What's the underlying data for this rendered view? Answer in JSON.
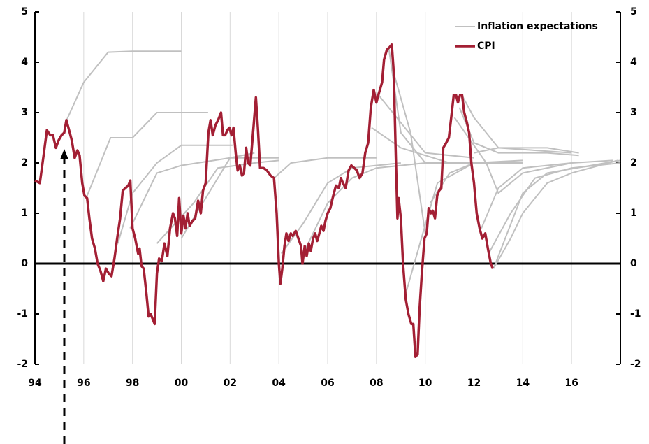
{
  "chart_data": {
    "type": "line",
    "xlim": [
      1994,
      2018
    ],
    "xticks": [
      {
        "value": 1994,
        "label": "94"
      },
      {
        "value": 1996,
        "label": "96"
      },
      {
        "value": 1998,
        "label": "98"
      },
      {
        "value": 2000,
        "label": "00"
      },
      {
        "value": 2002,
        "label": "02"
      },
      {
        "value": 2004,
        "label": "04"
      },
      {
        "value": 2006,
        "label": "06"
      },
      {
        "value": 2008,
        "label": "08"
      },
      {
        "value": 2010,
        "label": "10"
      },
      {
        "value": 2012,
        "label": "12"
      },
      {
        "value": 2014,
        "label": "14"
      },
      {
        "value": 2016,
        "label": "16"
      }
    ],
    "ylim": [
      -2,
      5
    ],
    "yticks": [
      -2,
      -1,
      0,
      1,
      2,
      3,
      4,
      5
    ],
    "y2lim": [
      -2,
      5
    ],
    "y2ticks": [
      -2,
      -1,
      0,
      1,
      2,
      3,
      4,
      5
    ],
    "grid": true,
    "legend": "top-right",
    "series": [
      {
        "name": "Inflation expectations",
        "color": "#c0c0c0",
        "lines": [
          {
            "x": [
              1995.3,
              1996,
              1997,
              1998,
              2000
            ],
            "values": [
              2.85,
              3.6,
              4.2,
              4.22,
              4.22
            ]
          },
          {
            "x": [
              1996.1,
              1997.1,
              1998,
              1999,
              2001.1
            ],
            "values": [
              1.3,
              2.5,
              2.5,
              3.0,
              3.0
            ]
          },
          {
            "x": [
              1997.4,
              1998,
              1999,
              2000,
              2002.1
            ],
            "values": [
              0.4,
              1.4,
              2.0,
              2.35,
              2.35
            ]
          },
          {
            "x": [
              1997.9,
              1999,
              2000,
              2002,
              2004
            ],
            "values": [
              0.7,
              1.8,
              1.95,
              2.1,
              2.1
            ]
          },
          {
            "x": [
              1999,
              2000.5,
              2001.5,
              2003,
              2004
            ],
            "values": [
              0.4,
              1.2,
              1.9,
              2.0,
              2.05
            ]
          },
          {
            "x": [
              2000,
              2002,
              2003
            ],
            "values": [
              0.5,
              2.1,
              2.2
            ]
          },
          {
            "x": [
              2003.8,
              2004.5,
              2006,
              2008
            ],
            "values": [
              1.7,
              2.0,
              2.1,
              2.1
            ]
          },
          {
            "x": [
              2004.1,
              2005,
              2006,
              2007,
              2009
            ],
            "values": [
              0.2,
              0.8,
              1.6,
              1.9,
              2.0
            ]
          },
          {
            "x": [
              2005.1,
              2006,
              2007,
              2008,
              2010
            ],
            "values": [
              0.3,
              1.2,
              1.7,
              1.9,
              2.0
            ]
          },
          {
            "x": [
              2008.5,
              2009,
              2010,
              2012
            ],
            "values": [
              4.3,
              2.6,
              2.0,
              2.0
            ]
          },
          {
            "x": [
              2008,
              2010,
              2012
            ],
            "values": [
              3.4,
              2.2,
              2.1
            ]
          },
          {
            "x": [
              2007.8,
              2009,
              2011,
              2013
            ],
            "values": [
              2.7,
              2.3,
              2.0,
              2.0
            ]
          },
          {
            "x": [
              2009.2,
              2009.9,
              2010.5,
              2012,
              2014
            ],
            "values": [
              -0.6,
              0.6,
              1.6,
              2.0,
              2.0
            ]
          },
          {
            "x": [
              2008.7,
              2009.4,
              2010
            ],
            "values": [
              3.8,
              2.6,
              0.6
            ]
          },
          {
            "x": [
              2011.5,
              2012,
              2013,
              2015,
              2016.3
            ],
            "values": [
              3.35,
              2.9,
              2.3,
              2.3,
              2.2
            ]
          },
          {
            "x": [
              2011.2,
              2012.5,
              2013,
              2014,
              2016
            ],
            "values": [
              2.9,
              2.0,
              1.4,
              1.8,
              2.0
            ]
          },
          {
            "x": [
              2011.4,
              2012,
              2013,
              2015,
              2016.3
            ],
            "values": [
              3.1,
              2.4,
              2.2,
              2.2,
              2.15
            ]
          },
          {
            "x": [
              2012.3,
              2013,
              2014,
              2016,
              2017.7
            ],
            "values": [
              0.7,
              1.5,
              1.9,
              2.0,
              2.05
            ]
          },
          {
            "x": [
              2012.8,
              2013.5,
              2014,
              2015,
              2016,
              2017.9
            ],
            "values": [
              -0.1,
              0.5,
              1.0,
              1.6,
              1.8,
              2.05
            ]
          },
          {
            "x": [
              2012.8,
              2014,
              2015,
              2018
            ],
            "values": [
              -0.1,
              1.4,
              1.8,
              2.05
            ]
          },
          {
            "x": [
              2012.6,
              2013.5,
              2014.5,
              2016,
              2018
            ],
            "values": [
              0.2,
              1.0,
              1.7,
              1.9,
              2.0
            ]
          },
          {
            "x": [
              2010.2,
              2011,
              2012,
              2014
            ],
            "values": [
              1.2,
              1.8,
              2.0,
              2.05
            ]
          },
          {
            "x": [
              2012,
              2013,
              2016
            ],
            "values": [
              2.2,
              2.3,
              2.2
            ]
          }
        ]
      },
      {
        "name": "CPI",
        "color": "#a31f34",
        "x": [
          1994.0,
          1994.2,
          1994.34,
          1994.49,
          1994.63,
          1994.74,
          1994.86,
          1994.97,
          1995.09,
          1995.2,
          1995.29,
          1995.4,
          1995.51,
          1995.63,
          1995.74,
          1995.83,
          1995.94,
          1996.03,
          1996.14,
          1996.23,
          1996.34,
          1996.46,
          1996.57,
          1996.69,
          1996.8,
          1996.91,
          1997.03,
          1997.14,
          1997.26,
          1997.37,
          1997.49,
          1997.6,
          1997.71,
          1997.83,
          1997.91,
          1998.0,
          1998.11,
          1998.23,
          1998.29,
          1998.37,
          1998.46,
          1998.57,
          1998.66,
          1998.74,
          1998.83,
          1998.91,
          1999.0,
          1999.09,
          1999.2,
          1999.31,
          1999.43,
          1999.54,
          1999.66,
          1999.74,
          1999.83,
          1999.91,
          2000.0,
          2000.09,
          2000.17,
          2000.26,
          2000.34,
          2000.46,
          2000.57,
          2000.69,
          2000.8,
          2000.89,
          2001.0,
          2001.11,
          2001.2,
          2001.29,
          2001.4,
          2001.51,
          2001.63,
          2001.71,
          2001.8,
          2001.89,
          2001.97,
          2002.06,
          2002.14,
          2002.23,
          2002.31,
          2002.4,
          2002.49,
          2002.57,
          2002.66,
          2002.74,
          2002.83,
          2002.94,
          2003.06,
          2003.14,
          2003.23,
          2003.37,
          2003.51,
          2003.66,
          2003.8,
          2003.91,
          2004.0,
          2004.06,
          2004.14,
          2004.23,
          2004.31,
          2004.4,
          2004.49,
          2004.57,
          2004.69,
          2004.8,
          2004.91,
          2004.97,
          2005.06,
          2005.14,
          2005.23,
          2005.31,
          2005.4,
          2005.49,
          2005.57,
          2005.66,
          2005.74,
          2005.83,
          2005.91,
          2006.0,
          2006.11,
          2006.23,
          2006.34,
          2006.46,
          2006.54,
          2006.63,
          2006.74,
          2006.86,
          2006.97,
          2007.09,
          2007.2,
          2007.31,
          2007.43,
          2007.54,
          2007.66,
          2007.77,
          2007.89,
          2008.0,
          2008.11,
          2008.23,
          2008.31,
          2008.43,
          2008.54,
          2008.63,
          2008.71,
          2008.8,
          2008.86,
          2008.91,
          2009.0,
          2009.09,
          2009.2,
          2009.31,
          2009.43,
          2009.51,
          2009.6,
          2009.69,
          2009.77,
          2009.86,
          2009.97,
          2010.06,
          2010.14,
          2010.23,
          2010.31,
          2010.4,
          2010.49,
          2010.57,
          2010.66,
          2010.74,
          2010.86,
          2010.97,
          2011.09,
          2011.17,
          2011.26,
          2011.34,
          2011.43,
          2011.51,
          2011.6,
          2011.71,
          2011.8,
          2011.89,
          2012.0,
          2012.11,
          2012.23,
          2012.34,
          2012.46,
          2012.57,
          2012.69,
          2012.77
        ],
        "values": [
          1.65,
          1.6,
          2.1,
          2.65,
          2.55,
          2.55,
          2.3,
          2.45,
          2.55,
          2.6,
          2.85,
          2.65,
          2.45,
          2.1,
          2.25,
          2.15,
          1.6,
          1.35,
          1.3,
          0.9,
          0.5,
          0.3,
          0.0,
          -0.15,
          -0.35,
          -0.1,
          -0.2,
          -0.25,
          0.1,
          0.5,
          0.9,
          1.45,
          1.5,
          1.55,
          1.65,
          0.7,
          0.5,
          0.2,
          0.3,
          -0.05,
          -0.1,
          -0.6,
          -1.05,
          -1.0,
          -1.1,
          -1.2,
          -0.2,
          0.1,
          0.05,
          0.4,
          0.15,
          0.7,
          1.0,
          0.9,
          0.55,
          1.3,
          0.6,
          0.95,
          0.7,
          1.0,
          0.75,
          0.85,
          0.9,
          1.25,
          1.0,
          1.45,
          1.6,
          2.6,
          2.85,
          2.55,
          2.75,
          2.85,
          3.0,
          2.55,
          2.55,
          2.65,
          2.7,
          2.55,
          2.7,
          2.2,
          1.85,
          1.95,
          1.75,
          1.8,
          2.3,
          2.0,
          1.95,
          2.6,
          3.3,
          2.7,
          1.9,
          1.9,
          1.85,
          1.75,
          1.7,
          1.0,
          0.0,
          -0.4,
          -0.1,
          0.35,
          0.6,
          0.45,
          0.6,
          0.55,
          0.65,
          0.5,
          0.35,
          0.0,
          0.35,
          0.15,
          0.4,
          0.25,
          0.5,
          0.6,
          0.45,
          0.6,
          0.75,
          0.65,
          0.85,
          1.0,
          1.1,
          1.35,
          1.55,
          1.5,
          1.7,
          1.6,
          1.5,
          1.85,
          1.95,
          1.9,
          1.85,
          1.7,
          1.8,
          2.2,
          2.4,
          3.1,
          3.45,
          3.2,
          3.4,
          3.6,
          4.05,
          4.25,
          4.3,
          4.35,
          3.8,
          2.0,
          0.9,
          1.3,
          0.9,
          0.0,
          -0.7,
          -1.0,
          -1.2,
          -1.2,
          -1.85,
          -1.8,
          -0.9,
          -0.2,
          0.5,
          0.6,
          1.1,
          1.0,
          1.05,
          0.9,
          1.35,
          1.45,
          1.5,
          2.3,
          2.4,
          2.5,
          3.0,
          3.35,
          3.35,
          3.2,
          3.35,
          3.35,
          3.0,
          2.8,
          2.6,
          2.0,
          1.6,
          1.0,
          0.7,
          0.5,
          0.6,
          0.3,
          0.0,
          -0.1
        ]
      }
    ]
  }
}
